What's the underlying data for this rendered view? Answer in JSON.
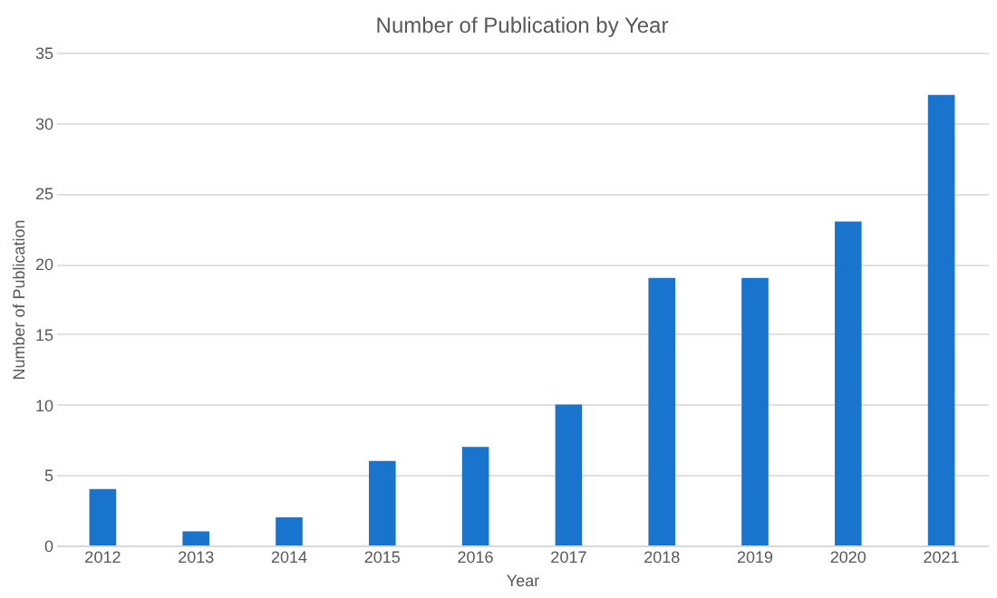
{
  "chart_data": {
    "type": "bar",
    "title": "Number of Publication by Year",
    "xlabel": "Year",
    "ylabel": "Number of Publication",
    "categories": [
      "2012",
      "2013",
      "2014",
      "2015",
      "2016",
      "2017",
      "2018",
      "2019",
      "2020",
      "2021"
    ],
    "values": [
      4,
      1,
      2,
      6,
      7,
      10,
      19,
      19,
      23,
      32
    ],
    "color": "#1874cd",
    "ylim": [
      0,
      35
    ],
    "yticks": [
      0,
      5,
      10,
      15,
      20,
      25,
      30,
      35
    ],
    "grid": "y"
  }
}
